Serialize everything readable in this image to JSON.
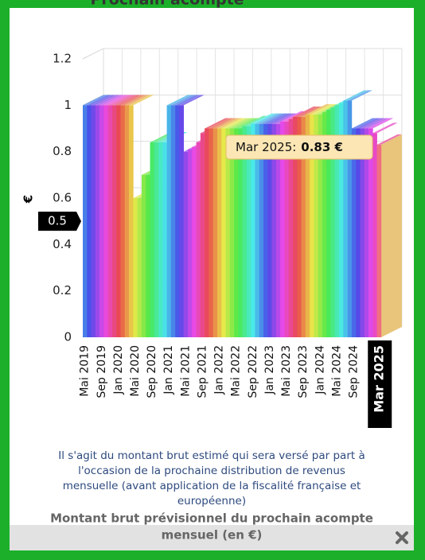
{
  "header": {
    "title": "Prochain acompte"
  },
  "chart_data": {
    "type": "bar3d",
    "y_label": "€",
    "categories": [
      "Mai 2019",
      null,
      null,
      null,
      "Sep 2019",
      null,
      null,
      null,
      "Jan 2020",
      null,
      null,
      null,
      "Mai 2020",
      null,
      null,
      null,
      "Sep 2020",
      null,
      null,
      null,
      "Jan 2021",
      null,
      null,
      null,
      "Mai 2021",
      null,
      null,
      null,
      "Sep 2021",
      null,
      null,
      null,
      "Jan 2022",
      null,
      null,
      null,
      "Mai 2022",
      null,
      null,
      null,
      "Sep 2022",
      null,
      null,
      null,
      "Jan 2023",
      null,
      null,
      null,
      "Mai 2023",
      null,
      null,
      null,
      "Sep 2023",
      null,
      null,
      null,
      "Jan 2024",
      null,
      null,
      null,
      "Mai 2024",
      null,
      null,
      null,
      "Sep 2024",
      null,
      null,
      null,
      null,
      null,
      "Mar 2025"
    ],
    "values": [
      1,
      1,
      1,
      1,
      1,
      1,
      1,
      1,
      1,
      1,
      1,
      1,
      0.6,
      0.6,
      0.7,
      0.7,
      0.84,
      0.84,
      0.84,
      0.84,
      1,
      1,
      1,
      1,
      0.8,
      0.81,
      0.82,
      0.84,
      0.88,
      0.9,
      0.9,
      0.9,
      0.9,
      0.9,
      0.9,
      0.9,
      0.9,
      0.9,
      0.91,
      0.91,
      0.92,
      0.92,
      0.92,
      0.92,
      0.92,
      0.92,
      0.92,
      0.93,
      0.93,
      0.94,
      0.95,
      0.95,
      0.95,
      0.96,
      0.96,
      0.96,
      0.96,
      0.97,
      0.98,
      0.99,
      1,
      1.01,
      1.02,
      1.02,
      0.9,
      0.9,
      0.9,
      0.9,
      0.9,
      0.88,
      0.83
    ],
    "value_labels": [
      null,
      null,
      null,
      null,
      null,
      null,
      null,
      null,
      null,
      null,
      null,
      null,
      null,
      null,
      null,
      null,
      null,
      null,
      null,
      null,
      null,
      null,
      null,
      null,
      null,
      null,
      null,
      null,
      null,
      null,
      null,
      null,
      null,
      null,
      null,
      null,
      null,
      null,
      null,
      null,
      null,
      null,
      null,
      null,
      null,
      null,
      null,
      null,
      null,
      null,
      null,
      null,
      null,
      null,
      null,
      null,
      null,
      null,
      null,
      null,
      null,
      null,
      null,
      null,
      null,
      null,
      null,
      null,
      null,
      null,
      "0.83 €"
    ],
    "tooltip": {
      "text": "Mar 2025:",
      "index": 70
    },
    "highlight_index": 70,
    "crosshair_y": 0.5,
    "palette": "rainbow",
    "ylim": [
      0,
      1.2
    ],
    "yticks": [
      0,
      0.2,
      0.4,
      0.6,
      0.8,
      1,
      1.2
    ],
    "grid": true
  },
  "description": {
    "lines": [
      "Il s'agit du montant brut estimé qui sera versé par part à",
      "l'occasion de la prochaine distribution de revenus",
      "mensuelle (avant application de la fiscalité française et",
      "européenne)"
    ]
  },
  "footer": {
    "lines": [
      "Montant brut prévisionnel du prochain acompte",
      "mensuel (en €)"
    ]
  }
}
